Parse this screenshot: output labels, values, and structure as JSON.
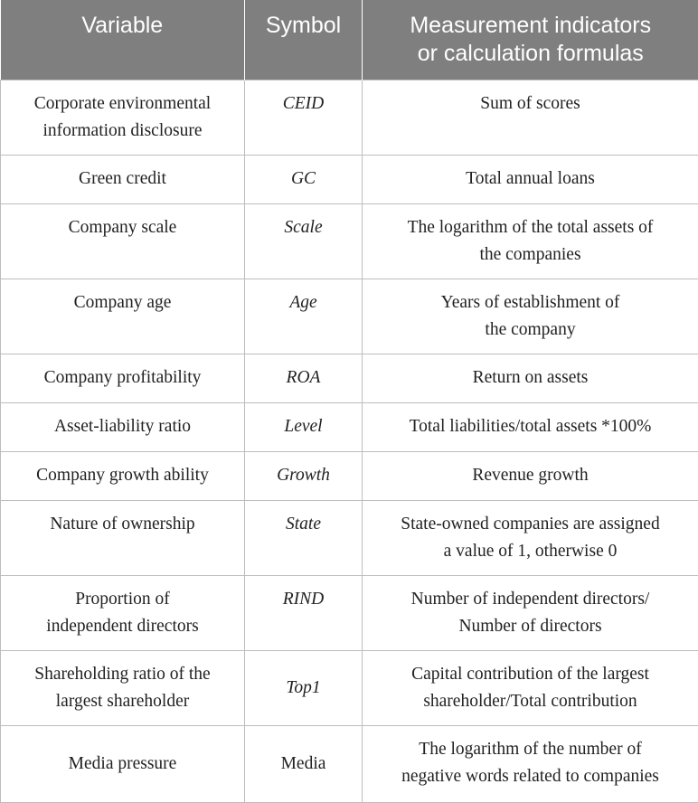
{
  "header": {
    "variable": "Variable",
    "symbol": "Symbol",
    "measure_line1": "Measurement indicators",
    "measure_line2": "or calculation formulas"
  },
  "rows": [
    {
      "variable": [
        "Corporate environmental",
        "information disclosure"
      ],
      "symbol": "CEID",
      "measure": [
        "Sum of scores"
      ]
    },
    {
      "variable": [
        "Green credit"
      ],
      "symbol": "GC",
      "measure": [
        "Total annual loans"
      ]
    },
    {
      "variable": [
        "Company scale"
      ],
      "symbol": "Scale",
      "measure": [
        "The logarithm of the total assets of",
        "the companies"
      ]
    },
    {
      "variable": [
        "Company age"
      ],
      "symbol": "Age",
      "measure": [
        "Years of establishment of",
        "the company"
      ]
    },
    {
      "variable": [
        "Company profitability"
      ],
      "symbol": "ROA",
      "measure": [
        "Return on assets"
      ]
    },
    {
      "variable": [
        "Asset-liability ratio"
      ],
      "symbol": "Level",
      "measure": [
        "Total liabilities/total assets *100%"
      ]
    },
    {
      "variable": [
        "Company growth ability"
      ],
      "symbol": "Growth",
      "measure": [
        "Revenue growth"
      ]
    },
    {
      "variable": [
        "Nature of ownership"
      ],
      "symbol": "State",
      "measure": [
        "State-owned companies are assigned",
        "a value of 1, otherwise 0"
      ]
    },
    {
      "variable": [
        "Proportion of",
        "independent directors"
      ],
      "symbol": "RIND",
      "measure": [
        "Number of independent directors/",
        "Number of directors"
      ]
    },
    {
      "variable": [
        "Shareholding ratio of the",
        "largest shareholder"
      ],
      "symbol": "Top1",
      "measure": [
        "Capital contribution of the largest",
        "shareholder/Total contribution"
      ]
    },
    {
      "variable": [
        "Media pressure"
      ],
      "symbol": "Media",
      "measure": [
        "The logarithm of the number of",
        "negative words related to companies"
      ]
    }
  ]
}
